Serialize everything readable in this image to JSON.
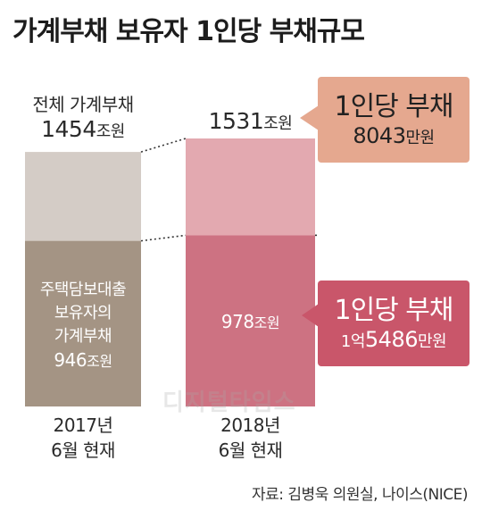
{
  "title": "가계부채 보유자 1인당 부채규모",
  "chart_data": {
    "type": "bar",
    "stacked": true,
    "categories": [
      "2017년 6월 현재",
      "2018년 6월 현재"
    ],
    "ylim": [
      0,
      1531
    ],
    "bars": [
      {
        "year": "2017년",
        "period": "6월 현재",
        "total": 1454,
        "total_label_text": "전체 가계부채",
        "total_value_text": "1454",
        "mortgage": 946,
        "mortgage_label_lines": [
          "주택담보대출",
          "보유자의",
          "가계부채"
        ],
        "mortgage_value_text": "946",
        "color_top": "#d4ccc6",
        "color_bottom": "#a49484"
      },
      {
        "year": "2018년",
        "period": "6월 현재",
        "total": 1531,
        "total_value_text": "1531",
        "mortgage": 978,
        "mortgage_value_text": "978",
        "color_top": "#e3a9b0",
        "color_bottom": "#cd7282"
      }
    ],
    "unit_jo": "조원",
    "callouts": [
      {
        "line1": "1인당 부채",
        "line2_value": "8043",
        "line2_unit": "만원",
        "color": "#e5a88f",
        "text_color": "#222222"
      },
      {
        "line1": "1인당 부채",
        "line2_prefix": "1억",
        "line2_value": "5486",
        "line2_unit": "만원",
        "color": "#c9566a",
        "text_color": "#ffffff"
      }
    ]
  },
  "source": "자료: 김병욱 의원실, 나이스(NICE)",
  "watermark": "디지털타임스"
}
